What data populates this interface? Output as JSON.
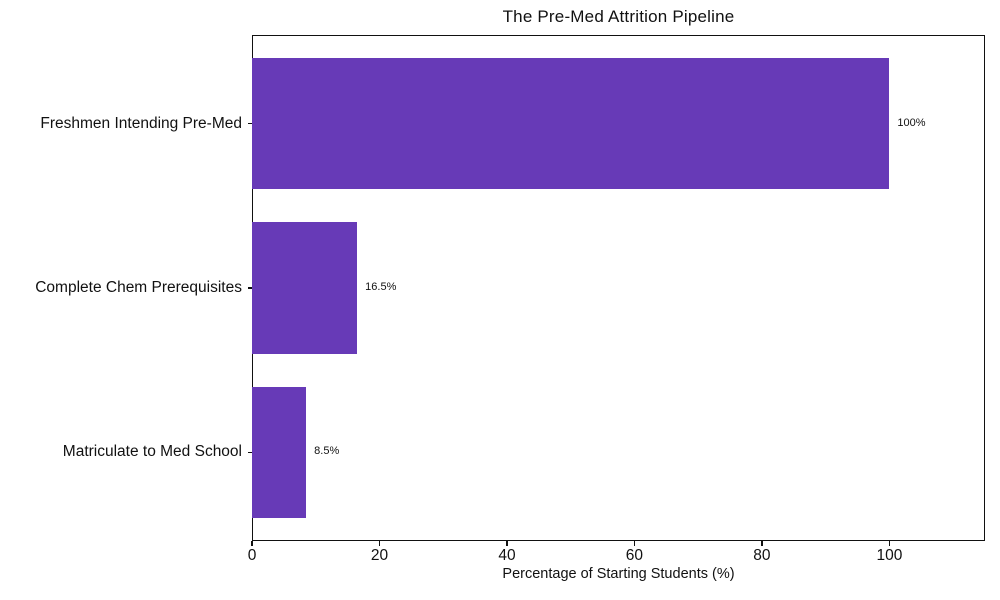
{
  "chart_data": {
    "type": "bar",
    "orientation": "horizontal",
    "title": "The Pre-Med Attrition Pipeline",
    "categories": [
      "Freshmen Intending Pre-Med",
      "Complete Chem Prerequisites",
      "Matriculate to Med School"
    ],
    "values": [
      100,
      16.5,
      8.5
    ],
    "value_labels": [
      "100%",
      "16.5%",
      "8.5%"
    ],
    "xlabel": "Percentage of Starting Students (%)",
    "ylabel": "",
    "xlim": [
      0,
      115
    ],
    "xticks": [
      0,
      20,
      40,
      60,
      80,
      100
    ],
    "bar_color": "#673ab7",
    "grid": false,
    "legend": null
  }
}
